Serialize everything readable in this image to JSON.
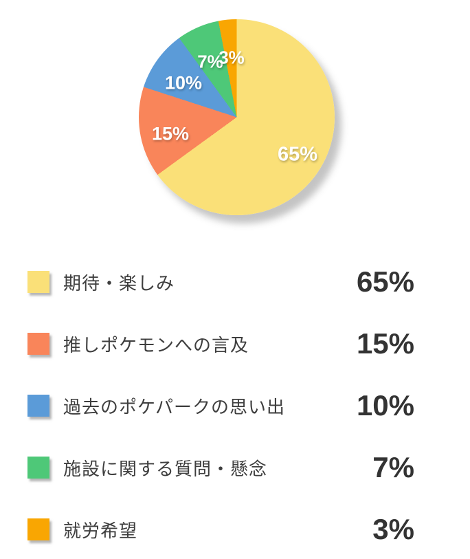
{
  "chart_data": {
    "type": "pie",
    "title": "",
    "direction": "clockwise",
    "start_angle_deg": 0,
    "legend_position": "bottom",
    "background_color": "#ffffff",
    "value_text_color": "#333333",
    "label_text_color": "#3e3e3e",
    "slice_label_color": "#ffffff",
    "slices": [
      {
        "label": "期待・楽しみ",
        "value": 65,
        "display": "65%",
        "color": "#FAE078"
      },
      {
        "label": "推しポケモンへの言及",
        "value": 15,
        "display": "15%",
        "color": "#F9855A"
      },
      {
        "label": "過去のポケパークの思い出",
        "value": 10,
        "display": "10%",
        "color": "#5B9BD8"
      },
      {
        "label": "施設に関する質問・懸念",
        "value": 7,
        "display": "7%",
        "color": "#4EC878"
      },
      {
        "label": "就労希望",
        "value": 3,
        "display": "3%",
        "color": "#F9A602"
      }
    ]
  }
}
